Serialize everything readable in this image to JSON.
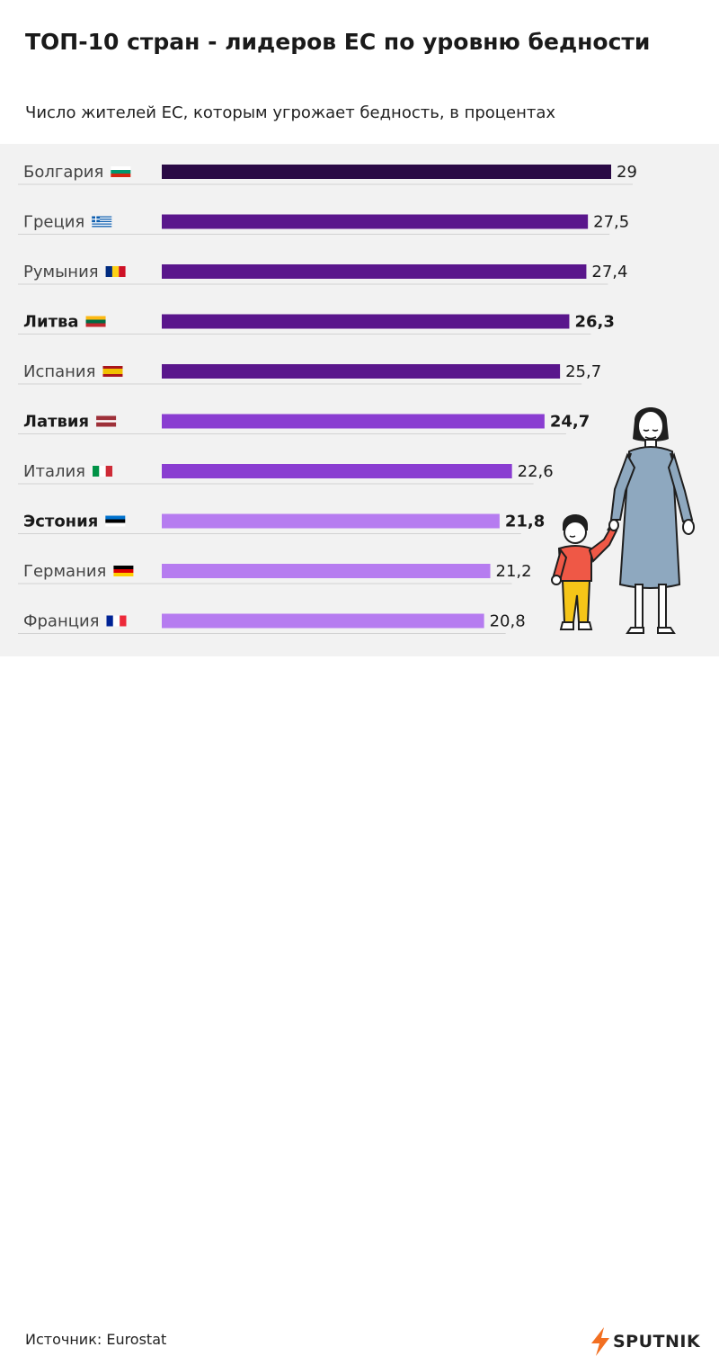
{
  "header": {
    "title": "ТОП-10 стран - лидеров ЕС по уровню бедности",
    "subtitle": "Число жителей ЕС, которым угрожает бедность, в процентах"
  },
  "chart_data": {
    "type": "bar",
    "orientation": "horizontal",
    "categories": [
      "Болгария",
      "Греция",
      "Румыния",
      "Литва",
      "Испания",
      "Латвия",
      "Италия",
      "Эстония",
      "Германия",
      "Франция"
    ],
    "values": [
      29,
      27.5,
      27.4,
      26.3,
      25.7,
      24.7,
      22.6,
      21.8,
      21.2,
      20.8
    ],
    "value_labels": [
      "29",
      "27,5",
      "27,4",
      "26,3",
      "25,7",
      "24,7",
      "22,6",
      "21,8",
      "21,2",
      "20,8"
    ],
    "bold_categories": [
      "Литва",
      "Латвия",
      "Эстония"
    ],
    "bar_colors": [
      "#2a0a45",
      "#5a168c",
      "#5a168c",
      "#5a168c",
      "#5a168c",
      "#8a3dd1",
      "#8a3dd1",
      "#b67cf0",
      "#b67cf0",
      "#b67cf0"
    ],
    "flags": [
      [
        "#ffffff",
        "#00966e",
        "#d62612"
      ],
      [
        "#0d5eaf",
        "#ffffff"
      ],
      [
        "#002b7f",
        "#fcd116",
        "#ce1126"
      ],
      [
        "#fdb913",
        "#006a44",
        "#c1272d"
      ],
      [
        "#aa151b",
        "#f1bf00",
        "#aa151b"
      ],
      [
        "#9e3039",
        "#ffffff",
        "#9e3039"
      ],
      [
        "#009246",
        "#ffffff",
        "#ce2b37"
      ],
      [
        "#0072ce",
        "#000000",
        "#ffffff"
      ],
      [
        "#000000",
        "#dd0000",
        "#ffce00"
      ],
      [
        "#002395",
        "#ffffff",
        "#ed2939"
      ]
    ],
    "flag_patterns": [
      "horizontal",
      "greece",
      "vertical",
      "horizontal",
      "spain",
      "latvia",
      "vertical",
      "horizontal",
      "horizontal",
      "vertical"
    ],
    "xlim": [
      0,
      29
    ],
    "grid": false
  },
  "footer": {
    "source": "Источник: Eurostat",
    "brand": "SPUTNIK"
  },
  "colors": {
    "background": "#f2f2f2",
    "brand_orange": "#f26f21"
  }
}
